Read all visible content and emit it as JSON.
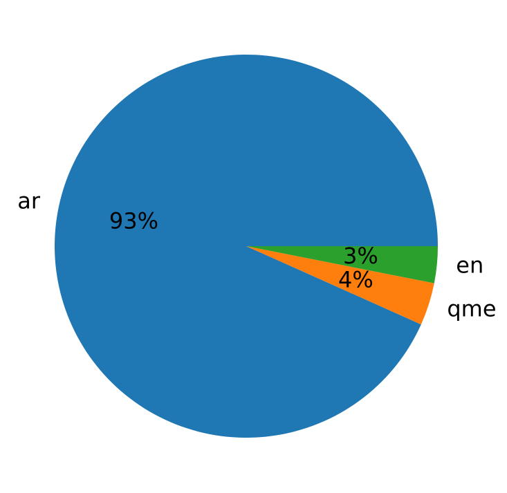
{
  "chart_data": {
    "type": "pie",
    "categories": [
      "ar",
      "qme",
      "en"
    ],
    "values": [
      93.3,
      3.6,
      3.1
    ],
    "percent_labels": [
      "93%",
      "4%",
      "3%"
    ],
    "colors": [
      "#1f77b4",
      "#ff7f0e",
      "#2ca02c"
    ],
    "start_angle_deg": 0,
    "direction": "counterclockwise",
    "title": ""
  }
}
